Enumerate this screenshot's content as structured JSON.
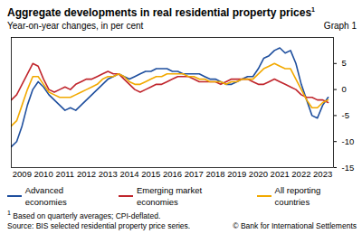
{
  "chart_data": {
    "type": "line",
    "title": "Aggregate developments in real residential property prices",
    "title_mark": "1",
    "subtitle": "Year-on-year changes, in per cent",
    "graph_label": "Graph 1",
    "footnote": {
      "mark": "1",
      "text": "Based on quarterly averages; CPI-deflated."
    },
    "source": "Source: BIS selected residential property price series.",
    "copyright": "© Bank for International Settlements",
    "legend": "bottom",
    "grid": false,
    "x": [
      2009,
      2009.25,
      2009.5,
      2009.75,
      2010,
      2010.25,
      2010.5,
      2010.75,
      2011,
      2011.25,
      2011.5,
      2011.75,
      2012,
      2012.25,
      2012.5,
      2012.75,
      2013,
      2013.25,
      2013.5,
      2013.75,
      2014,
      2014.25,
      2014.5,
      2014.75,
      2015,
      2015.25,
      2015.5,
      2015.75,
      2016,
      2016.25,
      2016.5,
      2016.75,
      2017,
      2017.25,
      2017.5,
      2017.75,
      2018,
      2018.25,
      2018.5,
      2018.75,
      2019,
      2019.25,
      2019.5,
      2019.75,
      2020,
      2020.25,
      2020.5,
      2020.75,
      2021,
      2021.25,
      2021.5,
      2021.75,
      2022,
      2022.25,
      2022.5,
      2022.75,
      2023,
      2023.25,
      2023.5,
      2023.75
    ],
    "xlim": [
      2009,
      2024
    ],
    "xticks": [
      {
        "value": 2009.5,
        "label": "2009"
      },
      {
        "value": 2010.5,
        "label": "2010"
      },
      {
        "value": 2011.5,
        "label": "2011"
      },
      {
        "value": 2012.5,
        "label": "2012"
      },
      {
        "value": 2013.5,
        "label": "2013"
      },
      {
        "value": 2014.5,
        "label": "2014"
      },
      {
        "value": 2015.5,
        "label": "2015"
      },
      {
        "value": 2016.5,
        "label": "2016"
      },
      {
        "value": 2017.5,
        "label": "2017"
      },
      {
        "value": 2018.5,
        "label": "2018"
      },
      {
        "value": 2019.5,
        "label": "2019"
      },
      {
        "value": 2020.5,
        "label": "2020"
      },
      {
        "value": 2021.5,
        "label": "2021"
      },
      {
        "value": 2022.5,
        "label": "2022"
      },
      {
        "value": 2023.5,
        "label": "2023"
      }
    ],
    "ylim": [
      -15,
      10
    ],
    "yticks": [
      -15,
      -10,
      -5,
      0,
      5
    ],
    "series": [
      {
        "name": "Advanced economies",
        "color": "#1f4f9e",
        "values": [
          -11,
          -10,
          -7,
          -3,
          0,
          1.5,
          0.5,
          -1,
          -2,
          -3,
          -4,
          -3.5,
          -4,
          -3,
          -2,
          -1,
          0,
          1,
          2,
          2.5,
          3,
          2.5,
          2,
          2.5,
          3,
          3.5,
          3.5,
          4,
          4,
          4,
          3.5,
          3.5,
          3,
          3,
          3,
          3,
          2.5,
          2,
          2,
          1.5,
          1,
          1,
          1.5,
          2,
          2.5,
          2.5,
          4,
          6,
          6.5,
          7.5,
          8,
          7,
          7.5,
          5,
          1,
          -2,
          -5,
          -5.5,
          -3,
          -1.5
        ]
      },
      {
        "name": "Emerging market economies",
        "color": "#c0262d",
        "values": [
          -2,
          -1,
          1,
          3,
          5,
          4.5,
          2,
          0,
          -0.5,
          0,
          0.5,
          0,
          1,
          1.5,
          2,
          2,
          2.5,
          3,
          3.5,
          3,
          3,
          2,
          1,
          0,
          -0.5,
          0,
          0.5,
          1,
          1,
          1.5,
          2,
          2.5,
          2.5,
          2.5,
          2,
          1.5,
          1.5,
          1.5,
          1.5,
          1,
          1.5,
          2,
          2,
          2,
          2,
          1.5,
          1,
          1,
          1.5,
          2,
          1.5,
          1,
          0.5,
          0,
          -1,
          -1.5,
          -1.5,
          -2,
          -2,
          -2.5
        ]
      },
      {
        "name": "All reporting countries",
        "color": "#f2a900",
        "values": [
          -7,
          -6,
          -3,
          0,
          2.5,
          2.5,
          1,
          -0.5,
          -1,
          -1.5,
          -1.5,
          -1.5,
          -1,
          -0.5,
          0,
          0.5,
          1,
          2,
          2.5,
          2.5,
          3,
          2.5,
          1.5,
          1,
          1,
          1.5,
          2,
          2.5,
          2.5,
          3,
          3,
          3,
          3,
          2.5,
          2.5,
          2,
          2,
          1.5,
          1.5,
          1.5,
          1,
          1.5,
          1.5,
          2,
          2,
          2,
          3,
          4,
          4.5,
          5,
          4.5,
          4,
          4,
          2,
          0,
          -2,
          -3.5,
          -3.5,
          -2.5,
          -2
        ]
      }
    ]
  }
}
